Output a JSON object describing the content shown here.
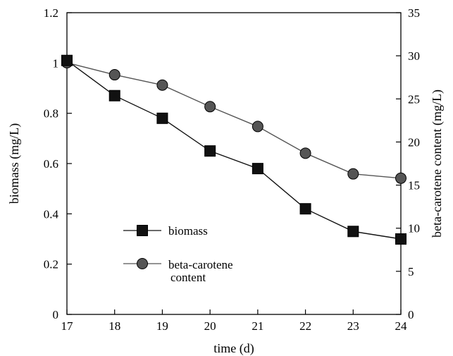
{
  "chart_data": {
    "type": "line",
    "x": [
      17,
      18,
      19,
      20,
      21,
      22,
      23,
      24
    ],
    "xlabel": "time (d)",
    "xlim": [
      17,
      24
    ],
    "xticks": [
      "17",
      "18",
      "19",
      "20",
      "21",
      "22",
      "23",
      "24"
    ],
    "ylabel_left": "biomass (mg/L)",
    "ylim_left": [
      0,
      1.2
    ],
    "yticks_left": [
      "0",
      "0.2",
      "0.4",
      "0.6",
      "0.8",
      "1",
      "1.2"
    ],
    "ylabel_right": "beta-carotene content (mg/L)",
    "ylim_right": [
      0,
      35
    ],
    "yticks_right": [
      "0",
      "5",
      "10",
      "15",
      "20",
      "25",
      "30",
      "35"
    ],
    "grid": false,
    "legend_position": "lower-left",
    "series": [
      {
        "name": "biomass",
        "axis": "left",
        "marker": "square",
        "color": "#111111",
        "values": [
          1.01,
          0.87,
          0.78,
          0.65,
          0.58,
          0.42,
          0.33,
          0.3
        ]
      },
      {
        "name": "beta-carotene content",
        "axis": "right",
        "marker": "circle",
        "color": "#555555",
        "values": [
          29.2,
          27.8,
          26.6,
          24.1,
          21.8,
          18.7,
          16.3,
          15.8
        ]
      }
    ],
    "legend": {
      "biomass": "biomass",
      "beta_line1": "beta-carotene",
      "beta_line2": "content"
    }
  }
}
